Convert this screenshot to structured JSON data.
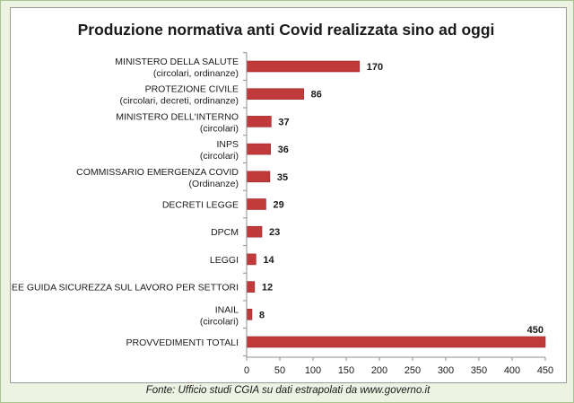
{
  "chart_data": {
    "type": "bar",
    "orientation": "horizontal",
    "title": "Produzione normativa anti Covid realizzata sino ad oggi",
    "categories": [
      [
        "MINISTERO DELLA SALUTE",
        "(circolari, ordinanze)"
      ],
      [
        "PROTEZIONE CIVILE",
        "(circolari, decreti, ordinanze)"
      ],
      [
        "MINISTERO DELL'INTERNO",
        "(circolari)"
      ],
      [
        "INPS",
        "(circolari)"
      ],
      [
        "COMMISSARIO EMERGENZA COVID",
        "(Ordinanze)"
      ],
      [
        "DECRETI LEGGE"
      ],
      [
        "DPCM"
      ],
      [
        "LEGGI"
      ],
      [
        "LINEE GUIDA SICUREZZA SUL LAVORO PER SETTORI"
      ],
      [
        "INAIL",
        "(circolari)"
      ],
      [
        "PROVVEDIMENTI TOTALI"
      ]
    ],
    "values": [
      170,
      86,
      37,
      36,
      35,
      29,
      23,
      14,
      12,
      8,
      450
    ],
    "xlim": [
      0,
      450
    ],
    "xticks": [
      0,
      50,
      100,
      150,
      200,
      250,
      300,
      350,
      400,
      450
    ],
    "bar_color": "#c0393b",
    "grid": false
  },
  "footer": {
    "source": "Fonte: Ufficio studi CGIA su dati estrapolati da www.governo.it"
  }
}
